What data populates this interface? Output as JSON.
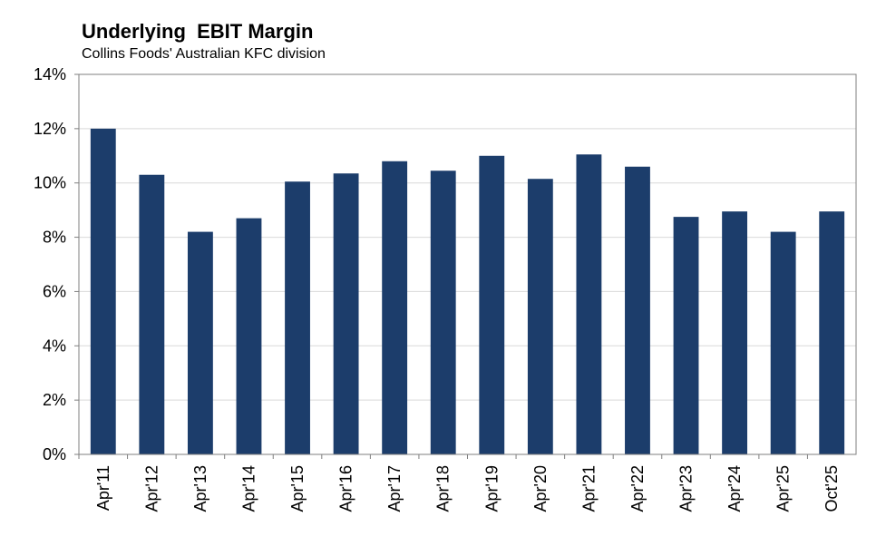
{
  "chart_data": {
    "type": "bar",
    "title": "Underlying  EBIT Margin",
    "subtitle": "Collins Foods' Australian KFC division",
    "categories": [
      "Apr'11",
      "Apr'12",
      "Apr'13",
      "Apr'14",
      "Apr'15",
      "Apr'16",
      "Apr'17",
      "Apr'18",
      "Apr'19",
      "Apr'20",
      "Apr'21",
      "Apr'22",
      "Apr'23",
      "Apr'24",
      "Apr'25",
      "Oct'25"
    ],
    "values": [
      12.0,
      10.3,
      8.2,
      8.7,
      10.05,
      10.35,
      10.8,
      10.45,
      11.0,
      10.15,
      11.05,
      10.6,
      8.75,
      8.95,
      8.2,
      8.95
    ],
    "ylim": [
      0,
      14
    ],
    "yticks": [
      0,
      2,
      4,
      6,
      8,
      10,
      12,
      14
    ],
    "ytick_labels": [
      "0%",
      "2%",
      "4%",
      "6%",
      "8%",
      "10%",
      "12%",
      "14%"
    ],
    "xlabel": "",
    "ylabel": "",
    "grid": true,
    "bar_color": "#1c3d6b",
    "grid_color": "#d9d9d9",
    "frame_color": "#7f7f7f"
  }
}
